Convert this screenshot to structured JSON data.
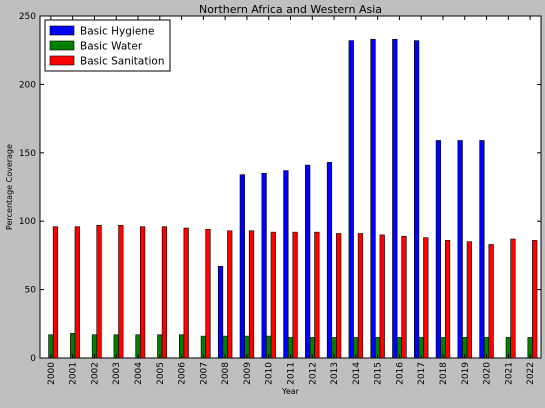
{
  "chart_data": {
    "type": "bar",
    "title": "Northern Africa and Western Asia",
    "xlabel": "Year",
    "ylabel": "Percentage Coverage",
    "ylim": [
      0,
      250
    ],
    "yticks": [
      0,
      50,
      100,
      150,
      200,
      250
    ],
    "grid": false,
    "legend_position": "top-left",
    "categories": [
      "2000",
      "2001",
      "2002",
      "2003",
      "2004",
      "2005",
      "2006",
      "2007",
      "2008",
      "2009",
      "2010",
      "2011",
      "2012",
      "2013",
      "2014",
      "2015",
      "2016",
      "2017",
      "2018",
      "2019",
      "2020",
      "2021",
      "2022"
    ],
    "series": [
      {
        "name": "Basic Hygiene",
        "color": "#0000ff",
        "values": [
          null,
          null,
          null,
          null,
          null,
          null,
          null,
          null,
          67,
          134,
          135,
          137,
          141,
          143,
          232,
          233,
          233,
          232,
          159,
          159,
          159,
          null,
          null
        ]
      },
      {
        "name": "Basic Water",
        "color": "#008000",
        "values": [
          17,
          18,
          17,
          17,
          17,
          17,
          17,
          16,
          16,
          16,
          16,
          15,
          15,
          15,
          15,
          15,
          15,
          15,
          15,
          15,
          15,
          15,
          15
        ]
      },
      {
        "name": "Basic Sanitation",
        "color": "#ff0000",
        "values": [
          96,
          96,
          97,
          97,
          96,
          96,
          95,
          94,
          93,
          93,
          92,
          92,
          92,
          91,
          91,
          90,
          89,
          88,
          86,
          85,
          83,
          87,
          86
        ]
      }
    ]
  }
}
